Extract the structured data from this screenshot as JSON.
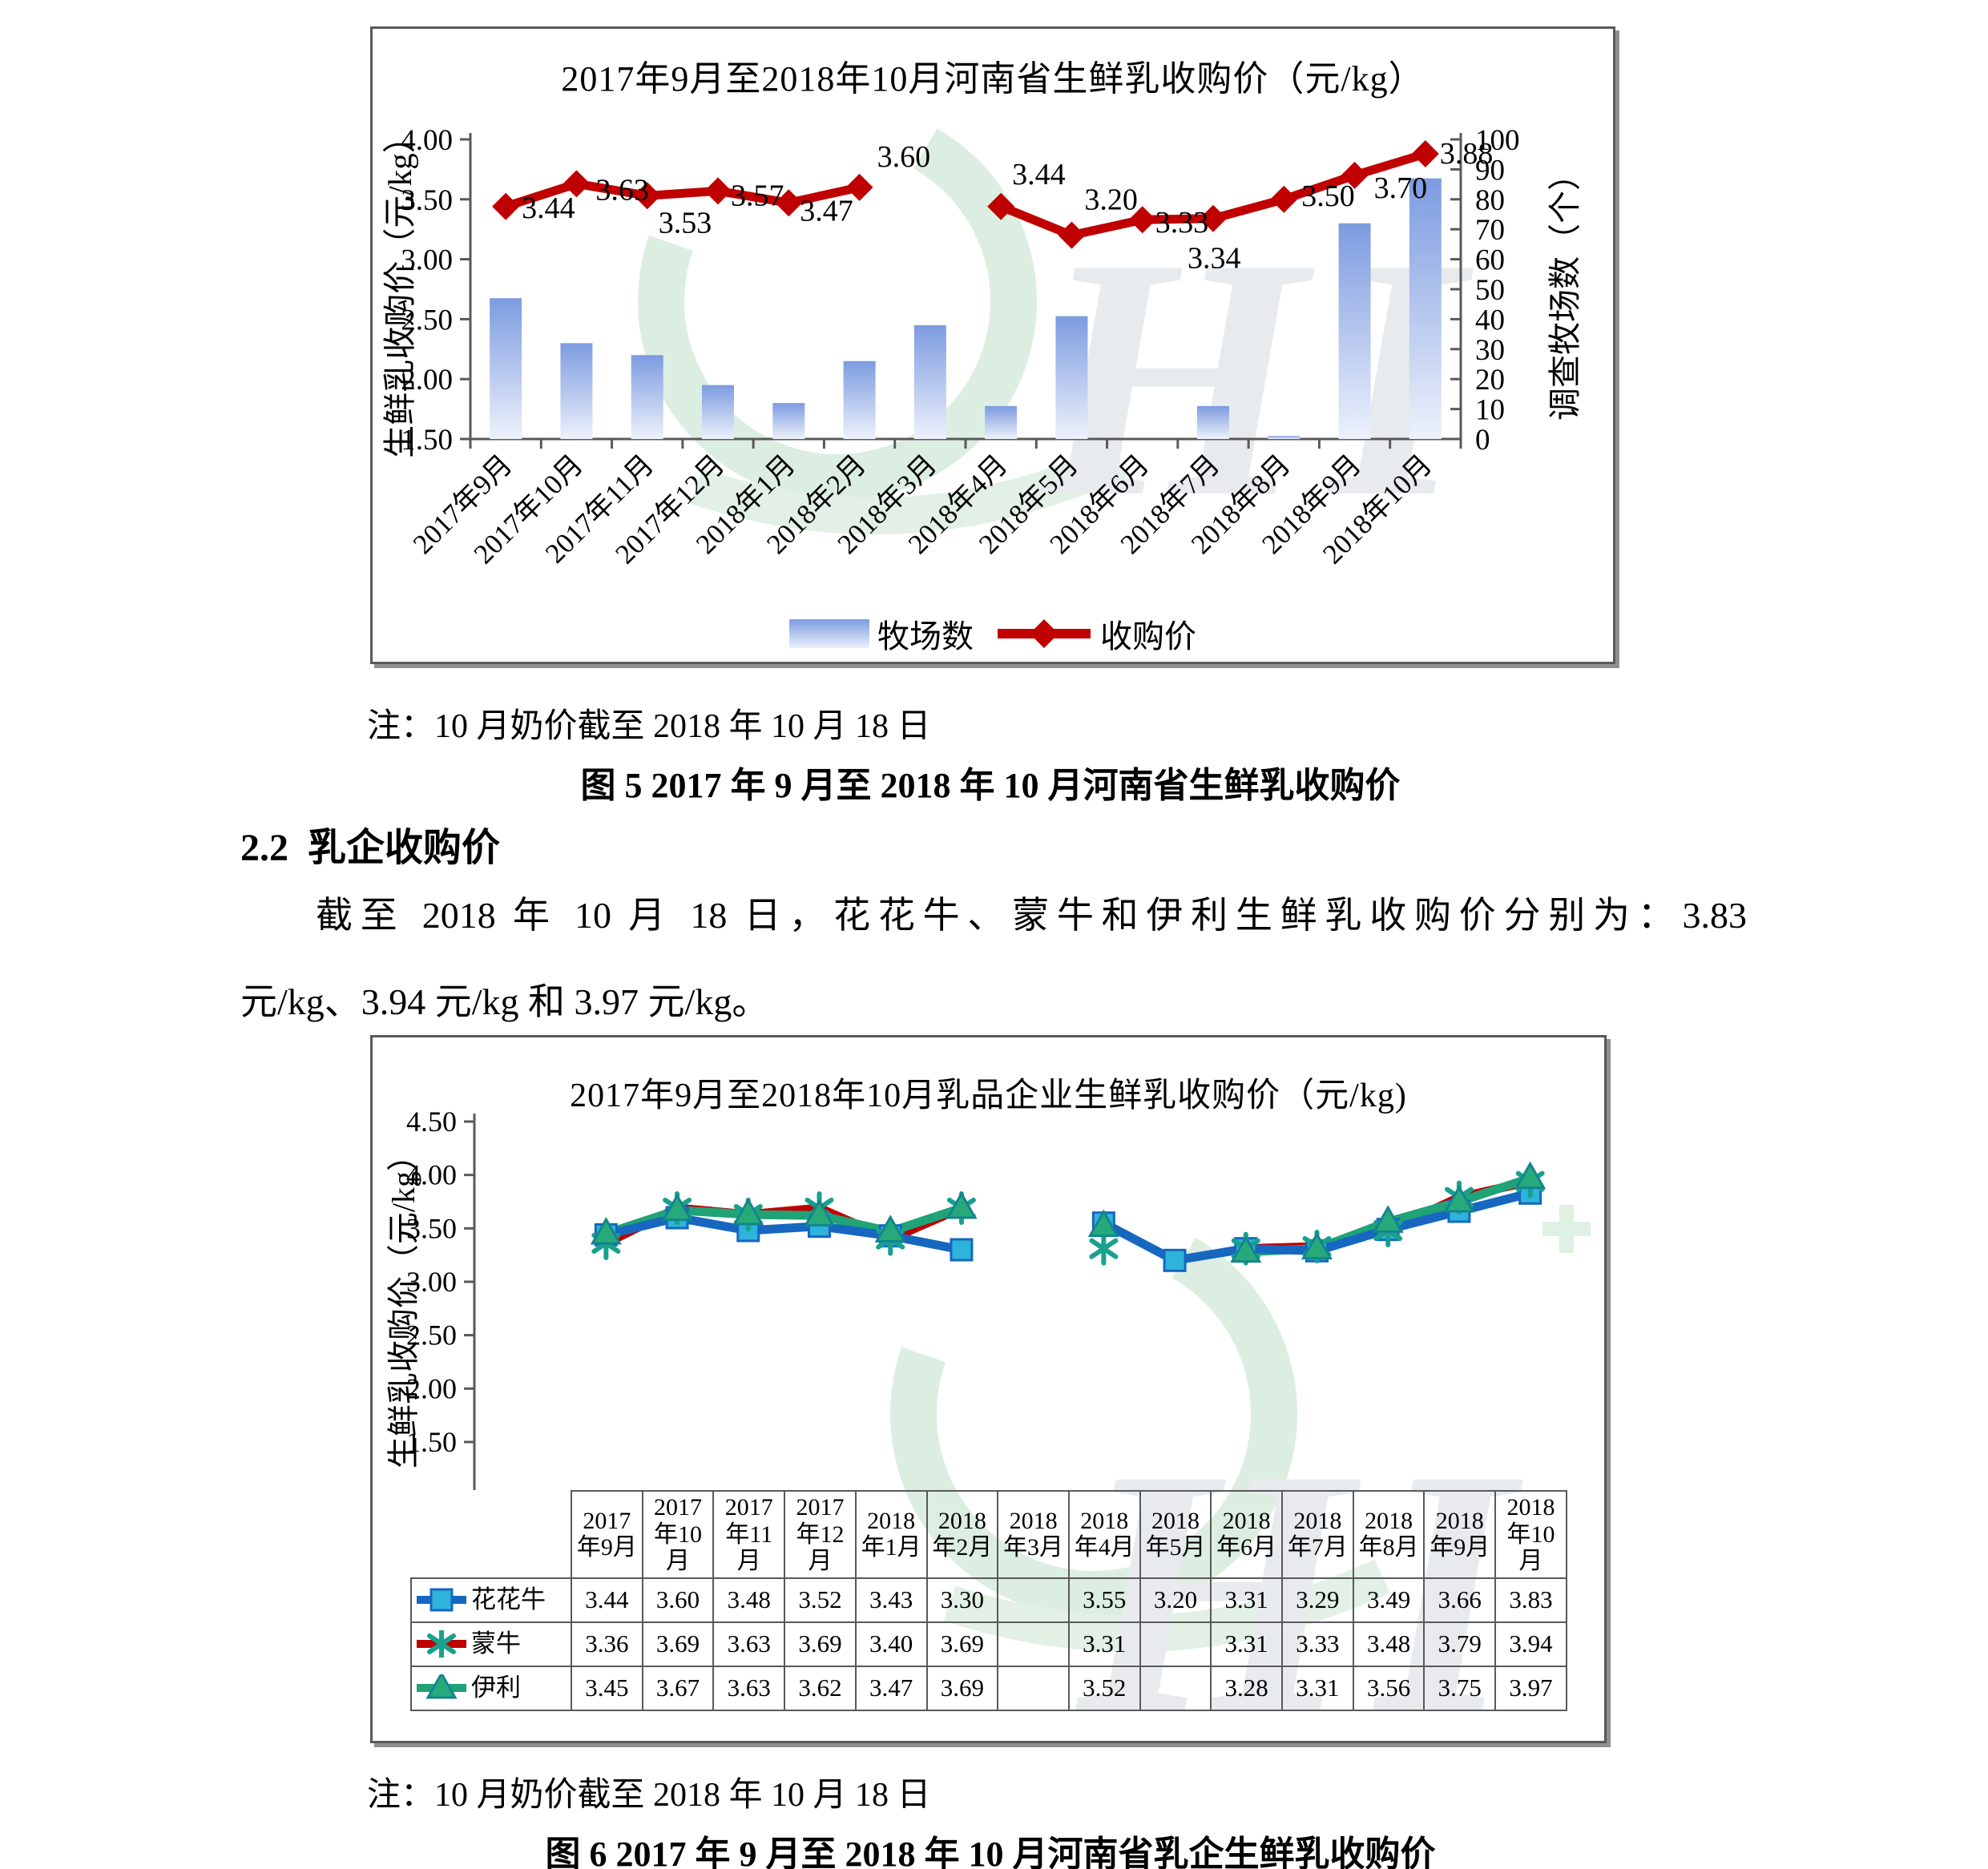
{
  "figure5": {
    "title": "2017年9月至2018年10月河南省生鲜乳收购价（元/kg）",
    "ylabel_left": "生鲜乳收购价（元/kg）",
    "ylabel_right": "调查牧场数（个）",
    "legend_farms": "牧场数",
    "legend_price": "收购价",
    "note": "注：10 月奶价截至 2018 年 10 月 18 日",
    "caption": "图 5 2017 年 9 月至 2018 年 10 月河南省生鲜乳收购价"
  },
  "section": {
    "number": "2.2",
    "title": "乳企收购价"
  },
  "paragraph": {
    "line1": "截至 2018 年 10 月 18 日，花花牛、蒙牛和伊利生鲜乳收购价分别为：3.83",
    "line2": "元/kg、3.94 元/kg 和 3.97 元/kg。"
  },
  "figure6": {
    "title": "2017年9月至2018年10月乳品企业生鲜乳收购价（元/kg)",
    "ylabel": "生鲜乳收购价（元/kg）",
    "note": "注：10 月奶价截至 2018 年 10 月 18 日",
    "caption": "图 6 2017 年 9 月至 2018 年 10 月河南省乳企生鲜乳收购价"
  },
  "chart_data": [
    {
      "type": "bar",
      "subtype": "combo-bar-line",
      "title": "2017年9月至2018年10月河南省生鲜乳收购价（元/kg）",
      "categories": [
        "2017年9月",
        "2017年10月",
        "2017年11月",
        "2017年12月",
        "2018年1月",
        "2018年2月",
        "2018年3月",
        "2018年4月",
        "2018年5月",
        "2018年6月",
        "2018年7月",
        "2018年8月",
        "2018年9月",
        "2018年10月"
      ],
      "series": [
        {
          "name": "牧场数",
          "type": "bar",
          "axis": "right",
          "color_top": "#7C9BE0",
          "color_bottom": "#EDF1FB",
          "values": [
            47,
            32,
            28,
            18,
            12,
            26,
            38,
            11,
            41,
            null,
            11,
            1,
            72,
            87
          ]
        },
        {
          "name": "收购价",
          "type": "line",
          "axis": "left",
          "color": "#C00000",
          "values": [
            3.44,
            3.63,
            3.53,
            3.57,
            3.47,
            3.6,
            null,
            3.44,
            3.2,
            3.33,
            3.34,
            3.5,
            3.7,
            3.88
          ]
        }
      ],
      "ylabel_left": "生鲜乳收购价（元/kg）",
      "ylabel_right": "调查牧场数（个）",
      "ylim_left": [
        1.5,
        4.0
      ],
      "ytick_step_left": 0.5,
      "ylim_right": [
        0,
        100
      ],
      "ytick_step_right": 10,
      "grid": false,
      "legend_position": "bottom"
    },
    {
      "type": "line",
      "subtype": "line-with-data-table",
      "title": "2017年9月至2018年10月乳品企业生鲜乳收购价（元/kg)",
      "categories": [
        "2017年9月",
        "2017年10月",
        "2017年11月",
        "2017年12月",
        "2018年1月",
        "2018年2月",
        "2018年3月",
        "2018年4月",
        "2018年5月",
        "2018年6月",
        "2018年7月",
        "2018年8月",
        "2018年9月",
        "2018年10月"
      ],
      "series": [
        {
          "name": "花花牛",
          "color": "#1767C0",
          "marker": "square",
          "marker_color": "#2EB3DA",
          "values": [
            3.44,
            3.6,
            3.48,
            3.52,
            3.43,
            3.3,
            null,
            3.55,
            3.2,
            3.31,
            3.29,
            3.49,
            3.66,
            3.83
          ]
        },
        {
          "name": "蒙牛",
          "color": "#C00000",
          "marker": "asterisk",
          "marker_color": "#18A18D",
          "values": [
            3.36,
            3.69,
            3.63,
            3.69,
            3.4,
            3.69,
            null,
            3.31,
            null,
            3.31,
            3.33,
            3.48,
            3.79,
            3.94
          ]
        },
        {
          "name": "伊利",
          "color": "#1FA377",
          "marker": "triangle",
          "marker_color": "#27AA7A",
          "values": [
            3.45,
            3.67,
            3.63,
            3.62,
            3.47,
            3.69,
            null,
            3.52,
            null,
            3.28,
            3.31,
            3.56,
            3.75,
            3.97
          ]
        }
      ],
      "ylabel": "生鲜乳收购价（元/kg）",
      "ylim": [
        1.5,
        4.5
      ],
      "ytick_step": 0.5,
      "grid": false,
      "legend_position": "table-left"
    }
  ]
}
